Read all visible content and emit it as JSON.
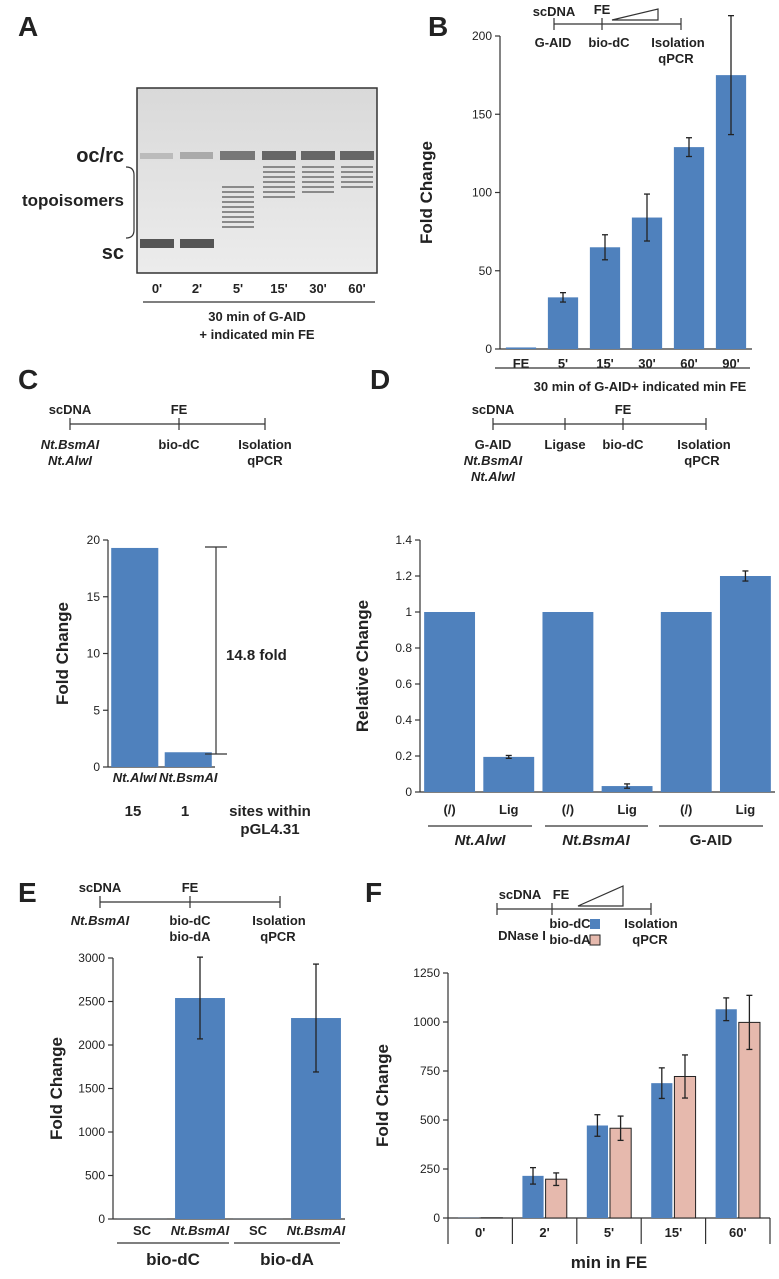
{
  "panels": {
    "A": {
      "letter": "A",
      "left_labels": [
        "oc/rc",
        "topoisomers",
        "sc"
      ],
      "lanes": [
        "0'",
        "2'",
        "5'",
        "15'",
        "30'",
        "60'"
      ],
      "caption": [
        "30 min of G-AID",
        "+ indicated min FE"
      ]
    },
    "B": {
      "letter": "B",
      "scheme": {
        "left": "scDNA",
        "fe": "FE",
        "steps": [
          "G-AID",
          "bio-dC",
          "Isolation",
          "qPCR"
        ]
      },
      "xnote": "30 min of G-AID+ indicated min FE"
    },
    "C": {
      "letter": "C",
      "scheme": {
        "left": "scDNA",
        "fe": "FE",
        "enzymes": [
          "Nt.BsmAI",
          "Nt.AlwI"
        ],
        "steps": [
          "bio-dC",
          "Isolation",
          "qPCR"
        ]
      },
      "bracket_label": "14.8 fold",
      "sites": [
        "15",
        "1"
      ],
      "sites_text": [
        "sites within",
        "pGL4.31"
      ]
    },
    "D": {
      "letter": "D",
      "scheme": {
        "left": "scDNA",
        "fe": "FE",
        "col1": [
          "G-AID",
          "Nt.BsmAI",
          "Nt.AlwI"
        ],
        "steps": [
          "Ligase",
          "bio-dC",
          "Isolation",
          "qPCR"
        ]
      },
      "groups": [
        "Nt.AlwI",
        "Nt.BsmAI",
        "G-AID"
      ]
    },
    "E": {
      "letter": "E",
      "scheme": {
        "left": "scDNA",
        "fe": "FE",
        "enzyme": "Nt.BsmAI",
        "steps": [
          "bio-dC",
          "bio-dA",
          "Isolation",
          "qPCR"
        ]
      },
      "groups": [
        "bio-dC",
        "bio-dA"
      ]
    },
    "F": {
      "letter": "F",
      "scheme": {
        "left": "scDNA",
        "fe": "FE",
        "steps": [
          "DNase I",
          "bio-dC",
          "bio-dA",
          "Isolation",
          "qPCR"
        ]
      }
    }
  },
  "chart_data": [
    {
      "panel": "B",
      "type": "bar",
      "ylabel": "Fold Change",
      "ylim": [
        0,
        200
      ],
      "yticks": [
        0,
        50,
        100,
        150,
        200
      ],
      "categories": [
        "FE",
        "5'",
        "15'",
        "30'",
        "60'",
        "90'"
      ],
      "values": [
        1,
        33,
        65,
        84,
        129,
        175
      ],
      "errors": [
        0,
        3,
        8,
        15,
        6,
        38
      ],
      "xlabel": "30 min of G-AID+ indicated min FE",
      "colors": [
        "#4f81bd"
      ]
    },
    {
      "panel": "C",
      "type": "bar",
      "ylabel": "Fold Change",
      "ylim": [
        0,
        20
      ],
      "yticks": [
        0,
        5,
        10,
        15,
        20
      ],
      "categories": [
        "Nt.AlwI",
        "Nt.BsmAI"
      ],
      "values": [
        19.3,
        1.3
      ],
      "colors": [
        "#4f81bd"
      ]
    },
    {
      "panel": "D",
      "type": "bar",
      "ylabel": "Relative Change",
      "ylim": [
        0,
        1.4
      ],
      "yticks": [
        0,
        0.2,
        0.4,
        0.6,
        0.8,
        1,
        1.2,
        1.4
      ],
      "categories": [
        "(/)",
        "Lig",
        "(/)",
        "Lig",
        "(/)",
        "Lig"
      ],
      "values": [
        1,
        0.195,
        1,
        0.033,
        1,
        1.2
      ],
      "errors": [
        0,
        0.008,
        0,
        0.012,
        0,
        0.028
      ],
      "groups": [
        "Nt.AlwI",
        "Nt.BsmAI",
        "G-AID"
      ],
      "colors": [
        "#4f81bd"
      ]
    },
    {
      "panel": "E",
      "type": "bar",
      "ylabel": "Fold Change",
      "ylim": [
        0,
        3000
      ],
      "yticks": [
        0,
        500,
        1000,
        1500,
        2000,
        2500,
        3000
      ],
      "categories": [
        "SC",
        "Nt.BsmAI",
        "SC",
        "Nt.BsmAI"
      ],
      "values": [
        1,
        2540,
        1,
        2310
      ],
      "errors": [
        0,
        470,
        0,
        620
      ],
      "groups": [
        "bio-dC",
        "bio-dA"
      ],
      "colors": [
        "#4f81bd"
      ]
    },
    {
      "panel": "F",
      "type": "bar",
      "ylabel": "Fold Change",
      "ylim": [
        0,
        1250
      ],
      "yticks": [
        0,
        250,
        500,
        750,
        1000,
        1250
      ],
      "categories": [
        "0'",
        "2'",
        "5'",
        "15'",
        "60'"
      ],
      "series": [
        {
          "name": "bio-dC",
          "values": [
            1,
            215,
            472,
            688,
            1065
          ],
          "errors": [
            0,
            42,
            55,
            78,
            58
          ]
        },
        {
          "name": "bio-dA",
          "values": [
            1,
            198,
            458,
            722,
            998
          ],
          "errors": [
            0,
            32,
            62,
            110,
            138
          ]
        }
      ],
      "xlabel": "min in FE",
      "colors": [
        "#4f81bd",
        "#e6b9ad"
      ]
    }
  ]
}
